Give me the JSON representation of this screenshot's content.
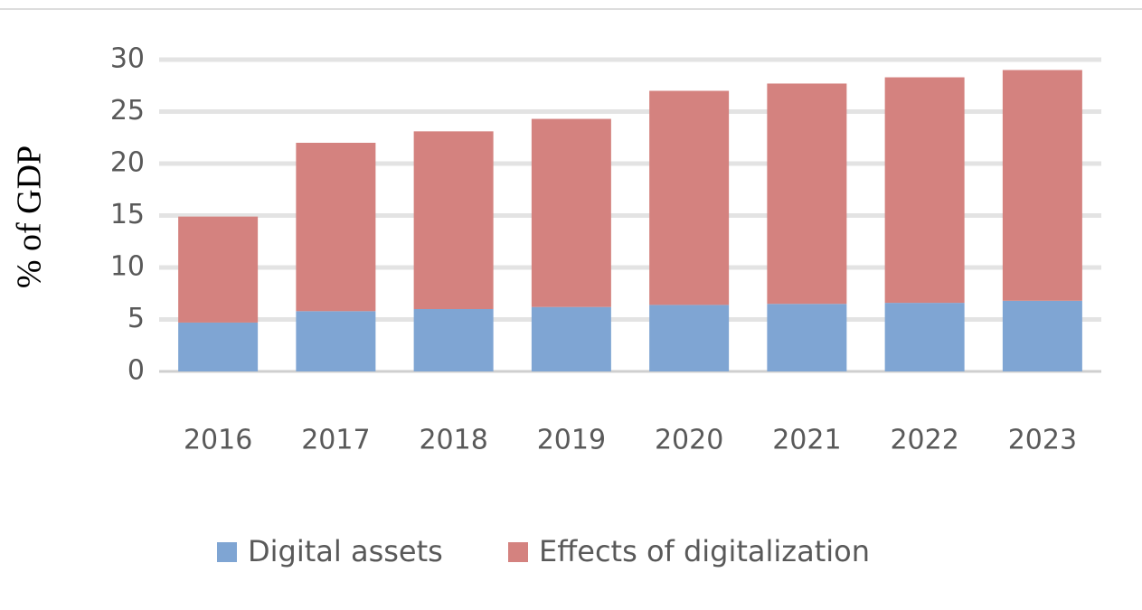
{
  "chart_data": {
    "type": "stacked_bar",
    "y_label": "% of GDP",
    "categories": [
      "2016",
      "2017",
      "2018",
      "2019",
      "2020",
      "2021",
      "2022",
      "2023"
    ],
    "series": [
      {
        "name": "Digital assets",
        "color": "#7fa5d3",
        "values": [
          4.7,
          5.8,
          6.0,
          6.2,
          6.4,
          6.5,
          6.6,
          6.8
        ]
      },
      {
        "name": "Effects of digitalization",
        "color": "#d4827f",
        "values": [
          10.2,
          16.2,
          17.1,
          18.1,
          20.6,
          21.2,
          21.7,
          22.2
        ]
      }
    ],
    "ylim": [
      0,
      30
    ],
    "yticks": [
      0,
      5,
      10,
      15,
      20,
      25,
      30
    ],
    "grid": true,
    "legend": "bottom"
  }
}
